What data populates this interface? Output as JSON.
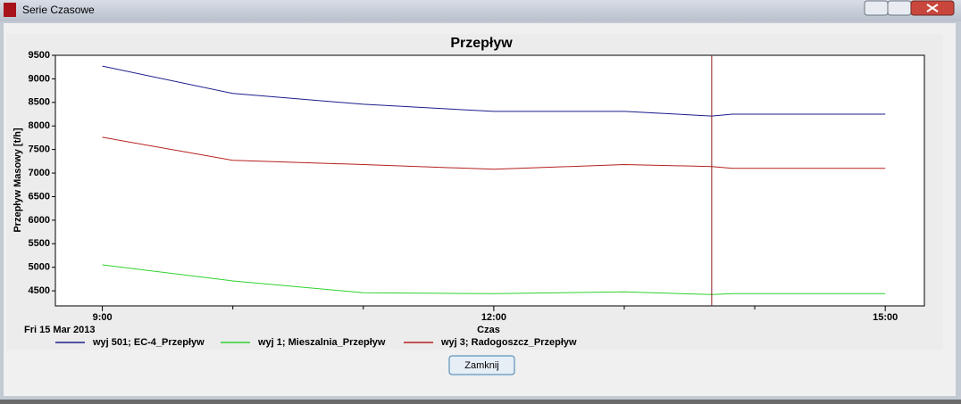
{
  "window": {
    "title": "Serie Czasowe"
  },
  "chart_data": {
    "type": "line",
    "title": "Przepływ",
    "x_label": "Czas",
    "y_label": "Przepływ Masowy [t/h]",
    "date_label": "Fri 15 Mar 2013",
    "x": [
      9,
      10,
      11,
      12,
      13,
      13.67,
      13.83,
      15
    ],
    "series": [
      {
        "name": "wyj 501; EC-4_Przepływ",
        "color": "#1c1c8c",
        "values": [
          9270,
          8690,
          8460,
          8310,
          8310,
          8210,
          8250,
          8250
        ]
      },
      {
        "name": "wyj 1; Mieszalnia_Przepływ",
        "color": "#2ed12e",
        "values": [
          5050,
          4710,
          4460,
          4440,
          4480,
          4420,
          4440,
          4440
        ]
      },
      {
        "name": "wyj 3; Radogoszcz_Przepływ",
        "color": "#b52020",
        "values": [
          7760,
          7270,
          7180,
          7080,
          7180,
          7140,
          7100,
          7100
        ]
      }
    ],
    "xlim": [
      8.64,
      15.3
    ],
    "xticks": [
      {
        "value": 9,
        "label": "9:00"
      },
      {
        "value": 12,
        "label": "12:00"
      },
      {
        "value": 15,
        "label": "15:00"
      }
    ],
    "xminor": [
      10,
      11,
      13,
      14
    ],
    "ylim": [
      4180,
      9500
    ],
    "yticks": [
      4500,
      5000,
      5500,
      6000,
      6500,
      7000,
      7500,
      8000,
      8500,
      9000,
      9500
    ],
    "cursor_x": 13.67,
    "cursor_color": "#8b1a1a"
  },
  "button": {
    "label": "Zamknij"
  }
}
